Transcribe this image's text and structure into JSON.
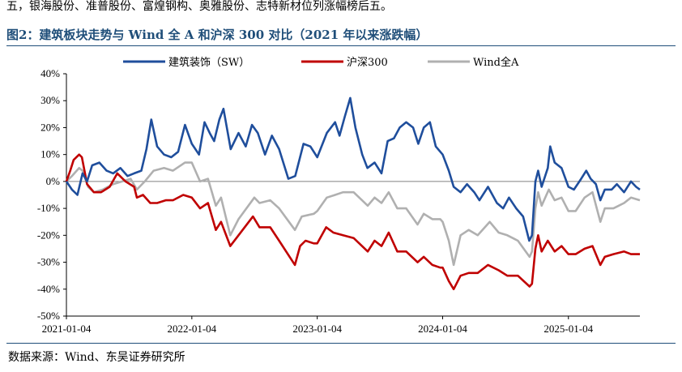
{
  "header": {
    "top_text": "五，银海股份、准普股份、富煌钢构、奥雅股份、志特新材位列涨幅榜后五。",
    "figure_title": "图2：建筑板块走势与 Wind 全 A 和沪深 300 对比（2021 年以来涨跌幅）"
  },
  "footer": {
    "source": "数据来源：Wind、东吴证券研究所"
  },
  "chart_data": {
    "type": "line",
    "title": "",
    "xlabel": "",
    "ylabel": "",
    "ylim": [
      -50,
      40
    ],
    "y_ticks": [
      40,
      30,
      20,
      10,
      0,
      -10,
      -20,
      -30,
      -40,
      -50
    ],
    "y_tick_labels": [
      "40%",
      "30%",
      "20%",
      "10%",
      "0%",
      "-10%",
      "-20%",
      "-30%",
      "-40%",
      "-50%"
    ],
    "x_ticks": [
      "2021-01-04",
      "2022-01-04",
      "2023-01-04",
      "2024-01-04",
      "2025-01-04"
    ],
    "x_range": [
      "2021-01-04",
      "2025-07-31"
    ],
    "grid": false,
    "zero_line": true,
    "legend_position": "top",
    "series": [
      {
        "name": "建筑装饰（SW）",
        "color": "#1f4e9c",
        "points": [
          [
            "2021-01-04",
            0
          ],
          [
            "2021-01-20",
            -3
          ],
          [
            "2021-02-05",
            -5
          ],
          [
            "2021-02-20",
            3
          ],
          [
            "2021-03-05",
            0
          ],
          [
            "2021-03-20",
            6
          ],
          [
            "2021-04-10",
            7
          ],
          [
            "2021-05-01",
            4
          ],
          [
            "2021-05-20",
            3
          ],
          [
            "2021-06-10",
            5
          ],
          [
            "2021-07-01",
            2
          ],
          [
            "2021-07-20",
            3
          ],
          [
            "2021-08-10",
            4
          ],
          [
            "2021-08-25",
            12
          ],
          [
            "2021-09-08",
            23
          ],
          [
            "2021-09-25",
            13
          ],
          [
            "2021-10-15",
            10
          ],
          [
            "2021-11-05",
            9
          ],
          [
            "2021-11-25",
            11
          ],
          [
            "2021-12-15",
            21
          ],
          [
            "2022-01-04",
            14
          ],
          [
            "2022-01-25",
            10
          ],
          [
            "2022-02-10",
            22
          ],
          [
            "2022-02-25",
            18
          ],
          [
            "2022-03-10",
            15
          ],
          [
            "2022-03-25",
            23
          ],
          [
            "2022-04-06",
            27
          ],
          [
            "2022-04-27",
            12
          ],
          [
            "2022-05-20",
            18
          ],
          [
            "2022-06-10",
            13
          ],
          [
            "2022-06-28",
            21
          ],
          [
            "2022-07-15",
            18
          ],
          [
            "2022-08-05",
            10
          ],
          [
            "2022-08-25",
            17
          ],
          [
            "2022-09-15",
            12
          ],
          [
            "2022-10-12",
            1
          ],
          [
            "2022-11-01",
            2
          ],
          [
            "2022-11-25",
            14
          ],
          [
            "2022-12-15",
            13
          ],
          [
            "2023-01-04",
            9
          ],
          [
            "2023-02-01",
            18
          ],
          [
            "2023-02-25",
            22
          ],
          [
            "2023-03-10",
            17
          ],
          [
            "2023-03-25",
            24
          ],
          [
            "2023-04-10",
            31
          ],
          [
            "2023-04-25",
            20
          ],
          [
            "2023-05-15",
            10
          ],
          [
            "2023-05-30",
            5
          ],
          [
            "2023-06-20",
            7
          ],
          [
            "2023-07-10",
            3
          ],
          [
            "2023-07-28",
            15
          ],
          [
            "2023-08-15",
            16
          ],
          [
            "2023-09-01",
            20
          ],
          [
            "2023-09-20",
            22
          ],
          [
            "2023-10-10",
            20
          ],
          [
            "2023-10-25",
            14
          ],
          [
            "2023-11-10",
            20
          ],
          [
            "2023-11-28",
            22
          ],
          [
            "2023-12-15",
            13
          ],
          [
            "2024-01-04",
            10
          ],
          [
            "2024-01-22",
            4
          ],
          [
            "2024-02-05",
            -2
          ],
          [
            "2024-02-25",
            -4
          ],
          [
            "2024-03-15",
            -1
          ],
          [
            "2024-04-05",
            -4
          ],
          [
            "2024-04-20",
            -7
          ],
          [
            "2024-05-15",
            -2
          ],
          [
            "2024-06-10",
            -8
          ],
          [
            "2024-06-28",
            -10
          ],
          [
            "2024-07-15",
            -6
          ],
          [
            "2024-08-05",
            -10
          ],
          [
            "2024-08-25",
            -13
          ],
          [
            "2024-09-12",
            -22
          ],
          [
            "2024-09-20",
            -20
          ],
          [
            "2024-09-30",
            0
          ],
          [
            "2024-10-08",
            4
          ],
          [
            "2024-10-18",
            -2
          ],
          [
            "2024-11-05",
            5
          ],
          [
            "2024-11-12",
            13
          ],
          [
            "2024-11-25",
            7
          ],
          [
            "2024-12-15",
            5
          ],
          [
            "2025-01-04",
            -2
          ],
          [
            "2025-01-20",
            -3
          ],
          [
            "2025-02-10",
            1
          ],
          [
            "2025-02-25",
            4
          ],
          [
            "2025-03-10",
            1
          ],
          [
            "2025-03-25",
            -1
          ],
          [
            "2025-04-07",
            -7
          ],
          [
            "2025-04-20",
            -3
          ],
          [
            "2025-05-10",
            -3
          ],
          [
            "2025-05-25",
            -1
          ],
          [
            "2025-06-15",
            -4
          ],
          [
            "2025-07-05",
            0
          ],
          [
            "2025-07-20",
            -2
          ],
          [
            "2025-07-31",
            -3
          ]
        ]
      },
      {
        "name": "沪深300",
        "color": "#c00000",
        "points": [
          [
            "2021-01-04",
            0
          ],
          [
            "2021-01-15",
            4
          ],
          [
            "2021-01-25",
            8
          ],
          [
            "2021-02-10",
            10
          ],
          [
            "2021-02-18",
            9
          ],
          [
            "2021-03-05",
            -1
          ],
          [
            "2021-03-25",
            -4
          ],
          [
            "2021-04-15",
            -4
          ],
          [
            "2021-05-10",
            -2
          ],
          [
            "2021-06-01",
            3
          ],
          [
            "2021-06-25",
            0
          ],
          [
            "2021-07-20",
            -2
          ],
          [
            "2021-07-28",
            -6
          ],
          [
            "2021-08-15",
            -5
          ],
          [
            "2021-09-05",
            -8
          ],
          [
            "2021-09-25",
            -8
          ],
          [
            "2021-10-20",
            -7
          ],
          [
            "2021-11-10",
            -7
          ],
          [
            "2021-12-10",
            -5
          ],
          [
            "2022-01-04",
            -6
          ],
          [
            "2022-01-28",
            -10
          ],
          [
            "2022-02-20",
            -8
          ],
          [
            "2022-03-15",
            -18
          ],
          [
            "2022-03-30",
            -15
          ],
          [
            "2022-04-26",
            -24
          ],
          [
            "2022-05-20",
            -20
          ],
          [
            "2022-07-01",
            -13
          ],
          [
            "2022-07-20",
            -17
          ],
          [
            "2022-08-20",
            -17
          ],
          [
            "2022-09-15",
            -22
          ],
          [
            "2022-10-31",
            -31
          ],
          [
            "2022-11-15",
            -24
          ],
          [
            "2022-12-01",
            -22
          ],
          [
            "2022-12-25",
            -23
          ],
          [
            "2023-01-04",
            -23
          ],
          [
            "2023-01-30",
            -17
          ],
          [
            "2023-02-20",
            -19
          ],
          [
            "2023-03-20",
            -20
          ],
          [
            "2023-04-20",
            -21
          ],
          [
            "2023-05-31",
            -26
          ],
          [
            "2023-06-20",
            -22
          ],
          [
            "2023-07-10",
            -24
          ],
          [
            "2023-07-31",
            -19
          ],
          [
            "2023-08-25",
            -26
          ],
          [
            "2023-09-20",
            -26
          ],
          [
            "2023-10-23",
            -30
          ],
          [
            "2023-11-10",
            -28
          ],
          [
            "2023-12-05",
            -31
          ],
          [
            "2023-12-28",
            -32
          ],
          [
            "2024-01-04",
            -32
          ],
          [
            "2024-01-22",
            -37
          ],
          [
            "2024-02-05",
            -40
          ],
          [
            "2024-02-25",
            -35
          ],
          [
            "2024-03-20",
            -34
          ],
          [
            "2024-04-15",
            -34
          ],
          [
            "2024-05-15",
            -31
          ],
          [
            "2024-06-15",
            -33
          ],
          [
            "2024-07-10",
            -35
          ],
          [
            "2024-08-10",
            -35
          ],
          [
            "2024-09-13",
            -39
          ],
          [
            "2024-09-20",
            -38
          ],
          [
            "2024-09-30",
            -25
          ],
          [
            "2024-10-08",
            -20
          ],
          [
            "2024-10-18",
            -26
          ],
          [
            "2024-11-05",
            -22
          ],
          [
            "2024-11-25",
            -26
          ],
          [
            "2024-12-15",
            -24
          ],
          [
            "2025-01-04",
            -27
          ],
          [
            "2025-01-25",
            -27
          ],
          [
            "2025-02-20",
            -25
          ],
          [
            "2025-03-15",
            -24
          ],
          [
            "2025-04-07",
            -31
          ],
          [
            "2025-04-20",
            -28
          ],
          [
            "2025-05-15",
            -27
          ],
          [
            "2025-06-15",
            -26
          ],
          [
            "2025-07-05",
            -27
          ],
          [
            "2025-07-31",
            -27
          ]
        ]
      },
      {
        "name": "Wind全A",
        "color": "#b0b0b0",
        "points": [
          [
            "2021-01-04",
            0
          ],
          [
            "2021-01-20",
            2
          ],
          [
            "2021-02-10",
            5
          ],
          [
            "2021-02-20",
            4
          ],
          [
            "2021-03-08",
            -2
          ],
          [
            "2021-03-25",
            -4
          ],
          [
            "2021-04-20",
            -3
          ],
          [
            "2021-05-20",
            -1
          ],
          [
            "2021-06-15",
            0
          ],
          [
            "2021-07-10",
            1
          ],
          [
            "2021-07-28",
            -3
          ],
          [
            "2021-08-20",
            0
          ],
          [
            "2021-09-15",
            4
          ],
          [
            "2021-10-15",
            5
          ],
          [
            "2021-11-10",
            4
          ],
          [
            "2021-12-15",
            7
          ],
          [
            "2022-01-04",
            7
          ],
          [
            "2022-01-28",
            0
          ],
          [
            "2022-02-20",
            1
          ],
          [
            "2022-03-15",
            -9
          ],
          [
            "2022-03-30",
            -6
          ],
          [
            "2022-04-26",
            -20
          ],
          [
            "2022-05-20",
            -14
          ],
          [
            "2022-07-05",
            -6
          ],
          [
            "2022-07-20",
            -8
          ],
          [
            "2022-08-20",
            -7
          ],
          [
            "2022-09-15",
            -10
          ],
          [
            "2022-10-31",
            -18
          ],
          [
            "2022-11-20",
            -13
          ],
          [
            "2022-12-25",
            -12
          ],
          [
            "2023-01-04",
            -11
          ],
          [
            "2023-02-01",
            -6
          ],
          [
            "2023-02-25",
            -5
          ],
          [
            "2023-03-20",
            -4
          ],
          [
            "2023-04-20",
            -4
          ],
          [
            "2023-05-31",
            -9
          ],
          [
            "2023-06-20",
            -6
          ],
          [
            "2023-07-10",
            -8
          ],
          [
            "2023-07-31",
            -4
          ],
          [
            "2023-08-25",
            -10
          ],
          [
            "2023-09-20",
            -10
          ],
          [
            "2023-10-23",
            -16
          ],
          [
            "2023-11-10",
            -12
          ],
          [
            "2023-12-05",
            -14
          ],
          [
            "2023-12-28",
            -14
          ],
          [
            "2024-01-04",
            -15
          ],
          [
            "2024-01-22",
            -22
          ],
          [
            "2024-02-05",
            -31
          ],
          [
            "2024-02-25",
            -20
          ],
          [
            "2024-03-20",
            -18
          ],
          [
            "2024-04-15",
            -20
          ],
          [
            "2024-05-20",
            -15
          ],
          [
            "2024-06-15",
            -19
          ],
          [
            "2024-07-10",
            -20
          ],
          [
            "2024-08-10",
            -22
          ],
          [
            "2024-09-13",
            -28
          ],
          [
            "2024-09-20",
            -26
          ],
          [
            "2024-09-30",
            -10
          ],
          [
            "2024-10-08",
            -4
          ],
          [
            "2024-10-18",
            -9
          ],
          [
            "2024-11-08",
            -3
          ],
          [
            "2024-11-25",
            -7
          ],
          [
            "2024-12-15",
            -6
          ],
          [
            "2025-01-04",
            -11
          ],
          [
            "2025-01-25",
            -11
          ],
          [
            "2025-02-20",
            -6
          ],
          [
            "2025-03-15",
            -4
          ],
          [
            "2025-04-07",
            -15
          ],
          [
            "2025-04-20",
            -10
          ],
          [
            "2025-05-15",
            -10
          ],
          [
            "2025-06-15",
            -8
          ],
          [
            "2025-07-05",
            -6
          ],
          [
            "2025-07-31",
            -7
          ]
        ]
      }
    ]
  }
}
